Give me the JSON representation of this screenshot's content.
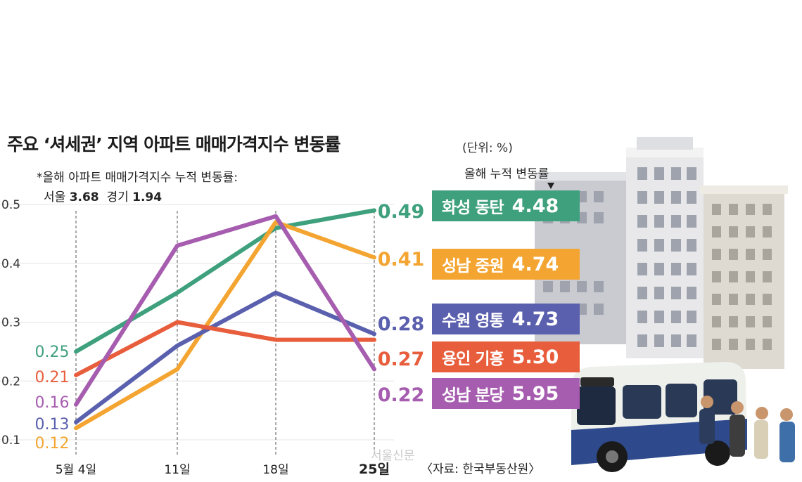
{
  "title": "주요 ‘셔세권’ 지역 아파트 매매가격지수 변동률",
  "unit": "(단위: %)",
  "note": {
    "line1": "*올해 아파트 매매가격지수 누적 변동률:",
    "seoul_label": "서울",
    "seoul_value": "3.68",
    "gyeonggi_label": "경기",
    "gyeonggi_value": "1.94"
  },
  "cumulative_header": "올해 누적 변동률",
  "source": "〈자료: 한국부동산원〉",
  "watermark": "서울신문",
  "colors": {
    "hwaseong": "#3fa07e",
    "seongnam_jungwon": "#f4a531",
    "suwon": "#5a5fae",
    "yongin": "#e85e3c",
    "seongnam_bundang": "#a65daf"
  },
  "chart_data": {
    "type": "line",
    "title": "주요 ‘셔세권’ 지역 아파트 매매가격지수 변동률",
    "categories": [
      "5월 4일",
      "11일",
      "18일",
      "25일"
    ],
    "ylim": [
      0.1,
      0.5
    ],
    "yticks": [
      "0.1",
      "0.2",
      "0.3",
      "0.4",
      "0.5"
    ],
    "grid": true,
    "series": [
      {
        "name": "화성 동탄",
        "cumulative": "4.48",
        "values": [
          0.25,
          0.35,
          0.46,
          0.49
        ],
        "color": "#3fa07e",
        "start_label": "0.25",
        "end_label": "0.49"
      },
      {
        "name": "성남 중원",
        "cumulative": "4.74",
        "values": [
          0.12,
          0.22,
          0.47,
          0.41
        ],
        "color": "#f4a531",
        "start_label": "0.12",
        "end_label": "0.41"
      },
      {
        "name": "수원 영통",
        "cumulative": "4.73",
        "values": [
          0.13,
          0.26,
          0.35,
          0.28
        ],
        "color": "#5a5fae",
        "start_label": "0.13",
        "end_label": "0.28"
      },
      {
        "name": "용인 기흥",
        "cumulative": "5.30",
        "values": [
          0.21,
          0.3,
          0.27,
          0.27
        ],
        "color": "#e85e3c",
        "start_label": "0.21",
        "end_label": "0.27"
      },
      {
        "name": "성남 분당",
        "cumulative": "5.95",
        "values": [
          0.16,
          0.43,
          0.48,
          0.22
        ],
        "color": "#a65daf",
        "start_label": "0.16",
        "end_label": "0.22"
      }
    ]
  }
}
